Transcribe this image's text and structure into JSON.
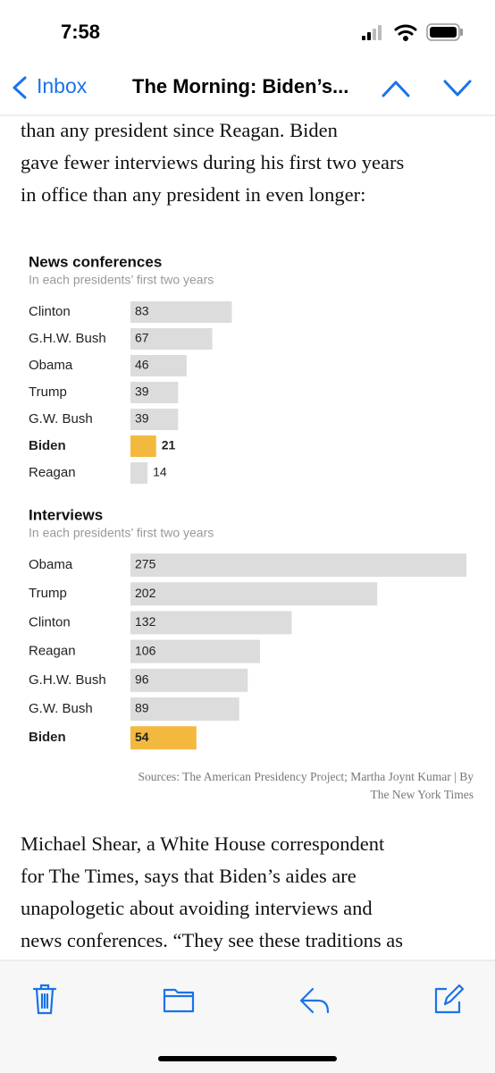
{
  "status_bar": {
    "time": "7:58"
  },
  "nav": {
    "back": "Inbox",
    "title": "The Morning: Biden’s..."
  },
  "body": {
    "paragraph_1": [
      "than any president since Reagan. Biden",
      "gave fewer interviews during his first two years",
      "in office than any president in even longer:"
    ],
    "paragraph_2": [
      "Michael Shear, a White House correspondent",
      "for The Times, says that Biden’s aides are",
      "unapologetic about avoiding interviews and",
      "news conferences. “They see these traditions as"
    ]
  },
  "chart_data": [
    {
      "type": "bar",
      "title": "News conferences",
      "subtitle": "In each presidents’ first two years",
      "categories": [
        "Clinton",
        "G.H.W. Bush",
        "Obama",
        "Trump",
        "G.W. Bush",
        "Biden",
        "Reagan"
      ],
      "values": [
        83,
        67,
        46,
        39,
        39,
        21,
        14
      ],
      "color": "#dcdcdc",
      "highlight_color": "#f3b93f",
      "colors": [
        "#dcdcdc",
        "#dcdcdc",
        "#dcdcdc",
        "#dcdcdc",
        "#dcdcdc",
        "#f3b93f",
        "#dcdcdc"
      ]
    },
    {
      "type": "bar",
      "title": "Interviews",
      "subtitle": "In each presidents’ first two years",
      "categories": [
        "Obama",
        "Trump",
        "Clinton",
        "Reagan",
        "G.H.W. Bush",
        "G.W. Bush",
        "Biden"
      ],
      "values": [
        275,
        202,
        132,
        106,
        96,
        89,
        54
      ],
      "color": "#dcdcdc",
      "highlight_color": "#f3b93f",
      "colors": [
        "#dcdcdc",
        "#dcdcdc",
        "#dcdcdc",
        "#dcdcdc",
        "#dcdcdc",
        "#dcdcdc",
        "#f3b93f"
      ]
    }
  ],
  "source": [
    "Sources: The American Presidency Project; Martha Joynt Kumar | By",
    "The New York Times"
  ]
}
